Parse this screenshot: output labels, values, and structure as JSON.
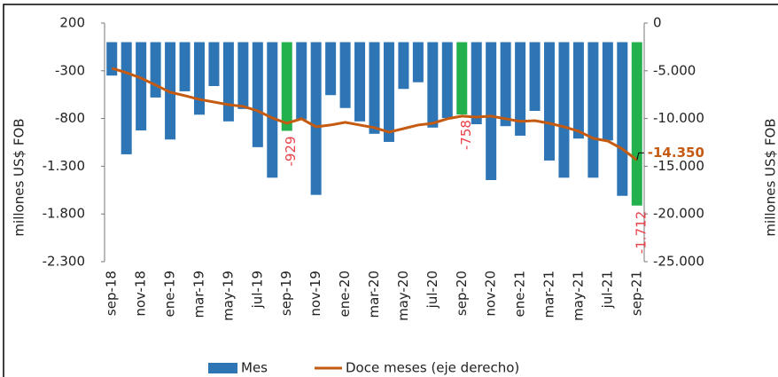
{
  "chart_data": {
    "type": "bar",
    "categories": [
      "sep-18",
      null,
      "nov-18",
      null,
      "ene-19",
      null,
      "mar-19",
      null,
      "may-19",
      null,
      "jul-19",
      null,
      "sep-19",
      null,
      "nov-19",
      null,
      "ene-20",
      null,
      "mar-20",
      null,
      "may-20",
      null,
      "jul-20",
      null,
      "sep-20",
      null,
      "nov-20",
      null,
      "ene-21",
      null,
      "mar-21",
      null,
      "may-21",
      null,
      "jul-21",
      null,
      "sep-21"
    ],
    "series": [
      {
        "name": "Mes",
        "type": "bar",
        "color": "#2e75b6",
        "colors": [
          "#2e75b6",
          "#2e75b6",
          "#2e75b6",
          "#2e75b6",
          "#2e75b6",
          "#2e75b6",
          "#2e75b6",
          "#2e75b6",
          "#2e75b6",
          "#2e75b6",
          "#2e75b6",
          "#2e75b6",
          "#22b14c",
          "#2e75b6",
          "#2e75b6",
          "#2e75b6",
          "#2e75b6",
          "#2e75b6",
          "#2e75b6",
          "#2e75b6",
          "#2e75b6",
          "#2e75b6",
          "#2e75b6",
          "#2e75b6",
          "#22b14c",
          "#2e75b6",
          "#2e75b6",
          "#2e75b6",
          "#2e75b6",
          "#2e75b6",
          "#2e75b6",
          "#2e75b6",
          "#2e75b6",
          "#2e75b6",
          "#2e75b6",
          "#2e75b6",
          "#22b14c"
        ],
        "values": [
          -350,
          -1175,
          -925,
          -580,
          -1020,
          -515,
          -760,
          -460,
          -830,
          -700,
          -1100,
          -1420,
          -929,
          -810,
          -1600,
          -555,
          -690,
          -830,
          -960,
          -1045,
          -490,
          -420,
          -895,
          -795,
          -758,
          -860,
          -1445,
          -880,
          -980,
          -720,
          -1240,
          -1420,
          -1010,
          -1420,
          -1030,
          -1610,
          -1712
        ],
        "value_labels": [
          null,
          null,
          null,
          null,
          null,
          null,
          null,
          null,
          null,
          null,
          null,
          null,
          "-929",
          null,
          null,
          null,
          null,
          null,
          null,
          null,
          null,
          null,
          null,
          null,
          "-758",
          null,
          null,
          null,
          null,
          null,
          null,
          null,
          null,
          null,
          null,
          null,
          "-1.712"
        ]
      },
      {
        "name": "Doce meses (eje derecho)",
        "type": "line",
        "axis": "y2",
        "color": "#c55a11",
        "values": [
          -4740,
          -5200,
          -5760,
          -6500,
          -7250,
          -7600,
          -8000,
          -8270,
          -8550,
          -8730,
          -9200,
          -9940,
          -10500,
          -10030,
          -10870,
          -10680,
          -10400,
          -10680,
          -10960,
          -11430,
          -11060,
          -10680,
          -10500,
          -10030,
          -9750,
          -9850,
          -9750,
          -10030,
          -10300,
          -10220,
          -10500,
          -10870,
          -11330,
          -12080,
          -12360,
          -13190,
          -14350
        ],
        "value_labels": [
          null,
          null,
          null,
          null,
          null,
          null,
          null,
          null,
          null,
          null,
          null,
          null,
          null,
          null,
          null,
          null,
          null,
          null,
          null,
          null,
          null,
          null,
          null,
          null,
          null,
          null,
          null,
          null,
          null,
          null,
          null,
          null,
          null,
          null,
          null,
          null,
          "-14.350"
        ]
      }
    ],
    "ylabel": "millones US$ FOB",
    "y2label": "millones US$ FOB",
    "ylim": [
      -2300,
      200
    ],
    "yticks": [
      200,
      -300,
      {
        "value": -800,
        "label": "-800"
      },
      {
        "value": -1300,
        "label": "-1.300"
      },
      {
        "value": -1800,
        "label": "-1.800"
      },
      {
        "value": -2300,
        "label": "-2.300"
      }
    ],
    "y2lim": [
      -25000,
      0
    ],
    "y2ticks": [
      0,
      {
        "value": -5000,
        "label": "-5.000"
      },
      {
        "value": -10000,
        "label": "-10.000"
      },
      {
        "value": -15000,
        "label": "-15.000"
      },
      {
        "value": -20000,
        "label": "-20.000"
      },
      {
        "value": -25000,
        "label": "-25.000"
      }
    ],
    "data_label_color": "#e8434a"
  }
}
